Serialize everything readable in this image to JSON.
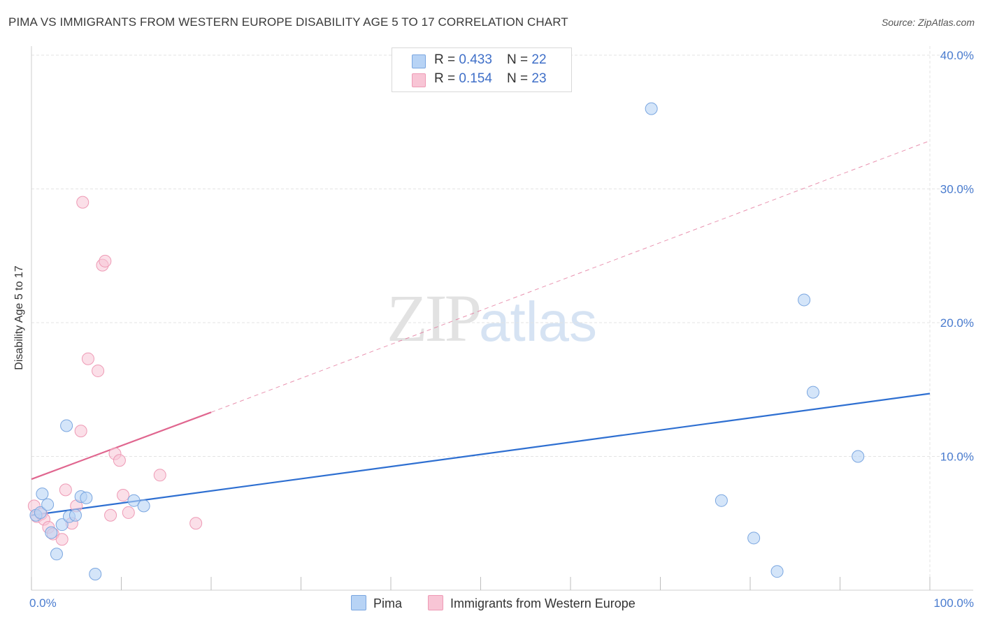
{
  "title": "PIMA VS IMMIGRANTS FROM WESTERN EUROPE DISABILITY AGE 5 TO 17 CORRELATION CHART",
  "source": "Source: ZipAtlas.com",
  "watermark": {
    "zip": "ZIP",
    "atlas": "atlas"
  },
  "colors": {
    "pima_fill": "#b7d3f5",
    "pima_stroke": "#7aa6e0",
    "pima_line": "#2e6fd1",
    "imm_fill": "#f8c5d5",
    "imm_stroke": "#ee9ab5",
    "imm_line": "#e0668f",
    "grid": "#e3e3e3",
    "axis_label": "#4a7ccf"
  },
  "legend": {
    "rows": [
      {
        "r_label": "R = ",
        "r_value": "0.433",
        "n_label": "N = ",
        "n_value": "22"
      },
      {
        "r_label": "R = ",
        "r_value": "0.154",
        "n_label": "N = ",
        "n_value": "23"
      }
    ]
  },
  "bottom_legend": {
    "pima": "Pima",
    "imm": "Immigrants from Western Europe"
  },
  "chart_data": {
    "type": "scatter",
    "title": "PIMA VS IMMIGRANTS FROM WESTERN EUROPE DISABILITY AGE 5 TO 17 CORRELATION CHART",
    "xlabel": "",
    "ylabel": "Disability Age 5 to 17",
    "xlim": [
      0,
      100
    ],
    "ylim": [
      0,
      40
    ],
    "x_tick_labels": [
      "0.0%",
      "100.0%"
    ],
    "y_ticks": [
      10,
      20,
      30,
      40
    ],
    "y_tick_labels": [
      "10.0%",
      "20.0%",
      "30.0%",
      "40.0%"
    ],
    "grid": true,
    "series": [
      {
        "name": "Pima",
        "R": 0.433,
        "N": 22,
        "points": [
          [
            0.5,
            5.6
          ],
          [
            1.0,
            5.8
          ],
          [
            1.2,
            7.2
          ],
          [
            1.8,
            6.4
          ],
          [
            2.2,
            4.3
          ],
          [
            2.8,
            2.7
          ],
          [
            3.4,
            4.9
          ],
          [
            3.9,
            12.3
          ],
          [
            4.2,
            5.5
          ],
          [
            4.9,
            5.6
          ],
          [
            5.5,
            7.0
          ],
          [
            6.1,
            6.9
          ],
          [
            7.1,
            1.2
          ],
          [
            11.4,
            6.7
          ],
          [
            12.5,
            6.3
          ],
          [
            69.0,
            36.0
          ],
          [
            76.8,
            6.7
          ],
          [
            80.4,
            3.9
          ],
          [
            83.0,
            1.4
          ],
          [
            86.0,
            21.7
          ],
          [
            87.0,
            14.8
          ],
          [
            92.0,
            10.0
          ]
        ],
        "trend": {
          "x": [
            0,
            100
          ],
          "y": [
            5.6,
            14.7
          ]
        }
      },
      {
        "name": "Immigrants from Western Europe",
        "R": 0.154,
        "N": 23,
        "points": [
          [
            0.3,
            6.3
          ],
          [
            0.6,
            5.5
          ],
          [
            1.1,
            5.7
          ],
          [
            1.4,
            5.3
          ],
          [
            1.9,
            4.7
          ],
          [
            2.4,
            4.2
          ],
          [
            3.4,
            3.8
          ],
          [
            3.8,
            7.5
          ],
          [
            4.5,
            5.0
          ],
          [
            5.0,
            6.3
          ],
          [
            5.5,
            11.9
          ],
          [
            5.7,
            29.0
          ],
          [
            6.3,
            17.3
          ],
          [
            7.4,
            16.4
          ],
          [
            7.9,
            24.3
          ],
          [
            8.2,
            24.6
          ],
          [
            8.8,
            5.6
          ],
          [
            9.3,
            10.2
          ],
          [
            9.8,
            9.7
          ],
          [
            10.2,
            7.1
          ],
          [
            10.8,
            5.8
          ],
          [
            14.3,
            8.6
          ],
          [
            18.3,
            5.0
          ]
        ],
        "trend": {
          "x": [
            0,
            20
          ],
          "y": [
            8.3,
            13.3
          ]
        },
        "trend_extended": {
          "x": [
            20,
            100
          ],
          "y": [
            13.3,
            33.6
          ]
        }
      }
    ]
  }
}
